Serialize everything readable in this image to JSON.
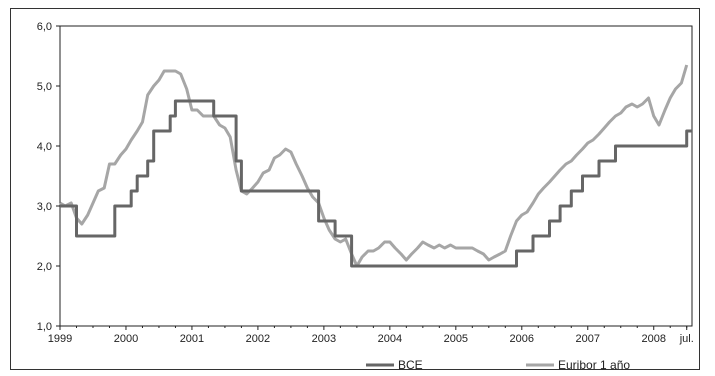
{
  "chart_data": {
    "type": "line",
    "title": "",
    "xlabel": "",
    "ylabel": "",
    "ylim": [
      1.0,
      6.0
    ],
    "xlim": [
      1999.0,
      2008.58
    ],
    "y_ticks": [
      "1,0",
      "2,0",
      "3,0",
      "4,0",
      "5,0",
      "6,0"
    ],
    "x_ticks": [
      "1999",
      "2000",
      "2001",
      "2002",
      "2003",
      "2004",
      "2005",
      "2006",
      "2007",
      "2008",
      "jul."
    ],
    "grid": false,
    "legend": "bottom",
    "colors": {
      "BCE": "#666666",
      "Euribor 1 año": "#a6a6a6"
    },
    "series": [
      {
        "name": "BCE",
        "points": [
          [
            1999.0,
            3.0
          ],
          [
            1999.25,
            3.0
          ],
          [
            1999.25,
            2.5
          ],
          [
            1999.83,
            2.5
          ],
          [
            1999.83,
            3.0
          ],
          [
            2000.08,
            3.0
          ],
          [
            2000.08,
            3.25
          ],
          [
            2000.17,
            3.25
          ],
          [
            2000.17,
            3.5
          ],
          [
            2000.33,
            3.5
          ],
          [
            2000.33,
            3.75
          ],
          [
            2000.42,
            3.75
          ],
          [
            2000.42,
            4.25
          ],
          [
            2000.67,
            4.25
          ],
          [
            2000.67,
            4.5
          ],
          [
            2000.75,
            4.5
          ],
          [
            2000.75,
            4.75
          ],
          [
            2001.33,
            4.75
          ],
          [
            2001.33,
            4.5
          ],
          [
            2001.67,
            4.5
          ],
          [
            2001.67,
            3.75
          ],
          [
            2001.75,
            3.75
          ],
          [
            2001.75,
            3.25
          ],
          [
            2001.92,
            3.25
          ],
          [
            2002.92,
            3.25
          ],
          [
            2002.92,
            2.75
          ],
          [
            2003.17,
            2.75
          ],
          [
            2003.17,
            2.5
          ],
          [
            2003.42,
            2.5
          ],
          [
            2003.42,
            2.0
          ],
          [
            2005.92,
            2.0
          ],
          [
            2005.92,
            2.25
          ],
          [
            2006.17,
            2.25
          ],
          [
            2006.17,
            2.5
          ],
          [
            2006.42,
            2.5
          ],
          [
            2006.42,
            2.75
          ],
          [
            2006.58,
            2.75
          ],
          [
            2006.58,
            3.0
          ],
          [
            2006.75,
            3.0
          ],
          [
            2006.75,
            3.25
          ],
          [
            2006.92,
            3.25
          ],
          [
            2006.92,
            3.5
          ],
          [
            2007.17,
            3.5
          ],
          [
            2007.17,
            3.75
          ],
          [
            2007.42,
            3.75
          ],
          [
            2007.42,
            4.0
          ],
          [
            2008.5,
            4.0
          ],
          [
            2008.5,
            4.25
          ],
          [
            2008.58,
            4.25
          ]
        ]
      },
      {
        "name": "Euribor 1 año",
        "points": [
          [
            1999.0,
            3.05
          ],
          [
            1999.08,
            3.0
          ],
          [
            1999.17,
            3.05
          ],
          [
            1999.25,
            2.8
          ],
          [
            1999.33,
            2.7
          ],
          [
            1999.42,
            2.85
          ],
          [
            1999.5,
            3.05
          ],
          [
            1999.58,
            3.25
          ],
          [
            1999.67,
            3.3
          ],
          [
            1999.75,
            3.7
          ],
          [
            1999.83,
            3.7
          ],
          [
            1999.92,
            3.85
          ],
          [
            2000.0,
            3.95
          ],
          [
            2000.08,
            4.1
          ],
          [
            2000.17,
            4.25
          ],
          [
            2000.25,
            4.4
          ],
          [
            2000.33,
            4.85
          ],
          [
            2000.42,
            5.0
          ],
          [
            2000.5,
            5.1
          ],
          [
            2000.58,
            5.25
          ],
          [
            2000.67,
            5.25
          ],
          [
            2000.75,
            5.25
          ],
          [
            2000.83,
            5.2
          ],
          [
            2000.92,
            4.95
          ],
          [
            2001.0,
            4.6
          ],
          [
            2001.08,
            4.6
          ],
          [
            2001.17,
            4.5
          ],
          [
            2001.25,
            4.5
          ],
          [
            2001.33,
            4.5
          ],
          [
            2001.42,
            4.35
          ],
          [
            2001.5,
            4.3
          ],
          [
            2001.58,
            4.15
          ],
          [
            2001.67,
            3.6
          ],
          [
            2001.75,
            3.25
          ],
          [
            2001.83,
            3.2
          ],
          [
            2001.92,
            3.3
          ],
          [
            2002.0,
            3.4
          ],
          [
            2002.08,
            3.55
          ],
          [
            2002.17,
            3.6
          ],
          [
            2002.25,
            3.8
          ],
          [
            2002.33,
            3.85
          ],
          [
            2002.42,
            3.95
          ],
          [
            2002.5,
            3.9
          ],
          [
            2002.58,
            3.7
          ],
          [
            2002.67,
            3.5
          ],
          [
            2002.75,
            3.3
          ],
          [
            2002.83,
            3.15
          ],
          [
            2002.92,
            3.05
          ],
          [
            2003.0,
            2.8
          ],
          [
            2003.08,
            2.6
          ],
          [
            2003.17,
            2.45
          ],
          [
            2003.25,
            2.4
          ],
          [
            2003.33,
            2.45
          ],
          [
            2003.42,
            2.2
          ],
          [
            2003.5,
            2.0
          ],
          [
            2003.58,
            2.15
          ],
          [
            2003.67,
            2.25
          ],
          [
            2003.75,
            2.25
          ],
          [
            2003.83,
            2.3
          ],
          [
            2003.92,
            2.4
          ],
          [
            2004.0,
            2.4
          ],
          [
            2004.08,
            2.3
          ],
          [
            2004.17,
            2.2
          ],
          [
            2004.25,
            2.1
          ],
          [
            2004.33,
            2.2
          ],
          [
            2004.42,
            2.3
          ],
          [
            2004.5,
            2.4
          ],
          [
            2004.58,
            2.35
          ],
          [
            2004.67,
            2.3
          ],
          [
            2004.75,
            2.35
          ],
          [
            2004.83,
            2.3
          ],
          [
            2004.92,
            2.35
          ],
          [
            2005.0,
            2.3
          ],
          [
            2005.08,
            2.3
          ],
          [
            2005.17,
            2.3
          ],
          [
            2005.25,
            2.3
          ],
          [
            2005.33,
            2.25
          ],
          [
            2005.42,
            2.2
          ],
          [
            2005.5,
            2.1
          ],
          [
            2005.58,
            2.15
          ],
          [
            2005.67,
            2.2
          ],
          [
            2005.75,
            2.25
          ],
          [
            2005.83,
            2.5
          ],
          [
            2005.92,
            2.75
          ],
          [
            2006.0,
            2.85
          ],
          [
            2006.08,
            2.9
          ],
          [
            2006.17,
            3.05
          ],
          [
            2006.25,
            3.2
          ],
          [
            2006.33,
            3.3
          ],
          [
            2006.42,
            3.4
          ],
          [
            2006.5,
            3.5
          ],
          [
            2006.58,
            3.6
          ],
          [
            2006.67,
            3.7
          ],
          [
            2006.75,
            3.75
          ],
          [
            2006.83,
            3.85
          ],
          [
            2006.92,
            3.95
          ],
          [
            2007.0,
            4.05
          ],
          [
            2007.08,
            4.1
          ],
          [
            2007.17,
            4.2
          ],
          [
            2007.25,
            4.3
          ],
          [
            2007.33,
            4.4
          ],
          [
            2007.42,
            4.5
          ],
          [
            2007.5,
            4.55
          ],
          [
            2007.58,
            4.65
          ],
          [
            2007.67,
            4.7
          ],
          [
            2007.75,
            4.65
          ],
          [
            2007.83,
            4.7
          ],
          [
            2007.92,
            4.8
          ],
          [
            2008.0,
            4.5
          ],
          [
            2008.08,
            4.35
          ],
          [
            2008.17,
            4.6
          ],
          [
            2008.25,
            4.8
          ],
          [
            2008.33,
            4.95
          ],
          [
            2008.42,
            5.05
          ],
          [
            2008.5,
            5.35
          ]
        ]
      }
    ]
  }
}
